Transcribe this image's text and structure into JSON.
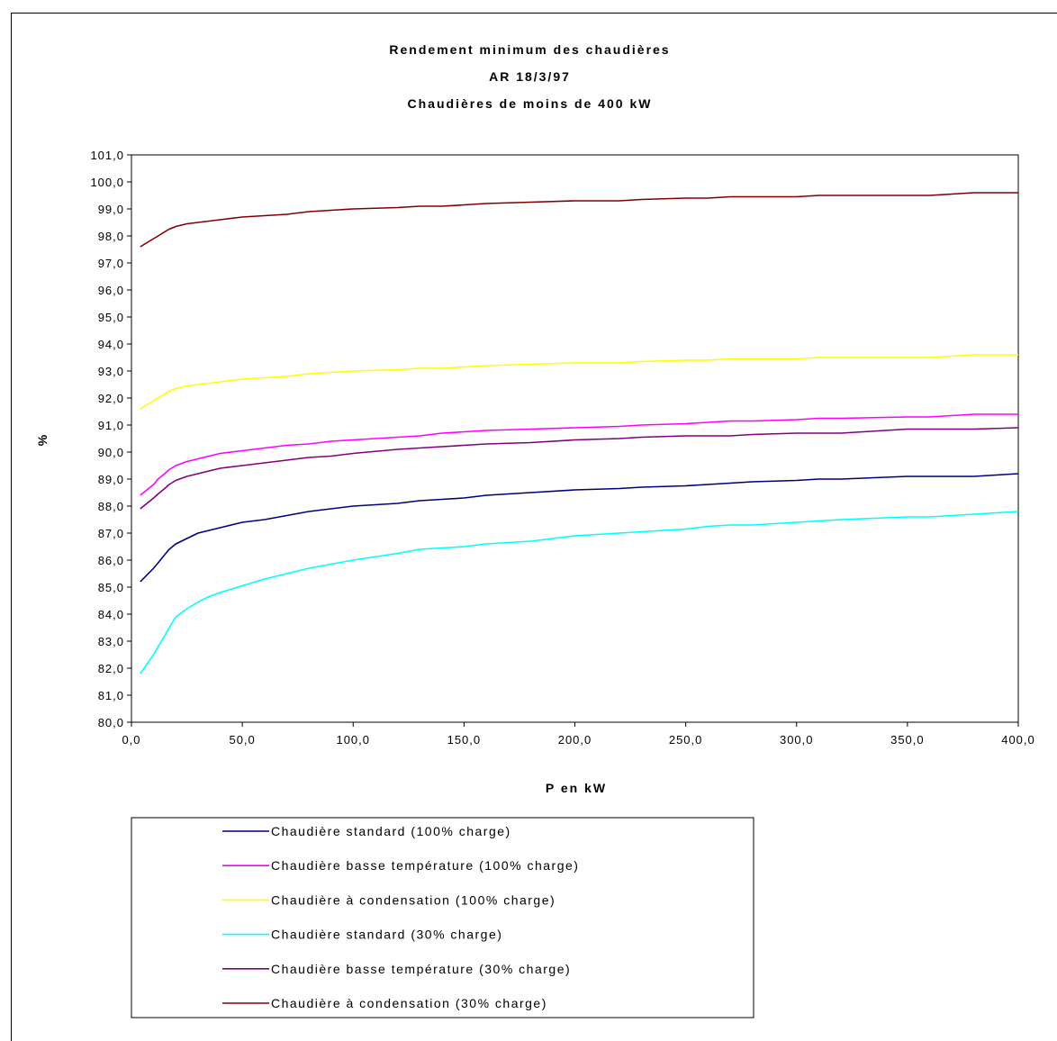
{
  "chart_data": {
    "type": "line",
    "title": [
      "Rendement minimum des chaudières",
      "AR 18/3/97",
      "Chaudières de moins de 400 kW"
    ],
    "xlabel": "P en kW",
    "ylabel": "%",
    "xlim": [
      0,
      400
    ],
    "ylim": [
      80,
      101
    ],
    "x_ticks": [
      "0,0",
      "50,0",
      "100,0",
      "150,0",
      "200,0",
      "250,0",
      "300,0",
      "350,0",
      "400,0"
    ],
    "y_ticks": [
      "80,0",
      "81,0",
      "82,0",
      "83,0",
      "84,0",
      "85,0",
      "86,0",
      "87,0",
      "88,0",
      "89,0",
      "90,0",
      "91,0",
      "92,0",
      "93,0",
      "94,0",
      "95,0",
      "96,0",
      "97,0",
      "98,0",
      "99,0",
      "100,0",
      "101,0"
    ],
    "grid": false,
    "legend_position": "bottom-left",
    "x": [
      4,
      10,
      12,
      15,
      17,
      20,
      25,
      30,
      35,
      40,
      50,
      60,
      70,
      80,
      90,
      100,
      120,
      130,
      140,
      150,
      160,
      180,
      200,
      220,
      230,
      250,
      260,
      270,
      280,
      300,
      310,
      320,
      350,
      360,
      370,
      380,
      400
    ],
    "series": [
      {
        "name": "Chaudière standard (100% charge)",
        "color": "#000080",
        "values": [
          85.2,
          85.7,
          85.9,
          86.2,
          86.4,
          86.6,
          86.8,
          87.0,
          87.1,
          87.2,
          87.4,
          87.5,
          87.65,
          87.8,
          87.9,
          88.0,
          88.1,
          88.2,
          88.25,
          88.3,
          88.4,
          88.5,
          88.6,
          88.65,
          88.7,
          88.75,
          88.8,
          88.85,
          88.9,
          88.95,
          89.0,
          89.0,
          89.1,
          89.1,
          89.1,
          89.1,
          89.2
        ]
      },
      {
        "name": "Chaudière basse température (100% charge)",
        "color": "#ff00ff",
        "values": [
          88.4,
          88.8,
          89.0,
          89.2,
          89.35,
          89.5,
          89.65,
          89.75,
          89.85,
          89.95,
          90.05,
          90.15,
          90.25,
          90.3,
          90.4,
          90.45,
          90.55,
          90.6,
          90.7,
          90.75,
          90.8,
          90.85,
          90.9,
          90.95,
          91.0,
          91.05,
          91.1,
          91.15,
          91.15,
          91.2,
          91.25,
          91.25,
          91.3,
          91.3,
          91.35,
          91.4,
          91.4
        ]
      },
      {
        "name": "Chaudière à condensation (100% charge)",
        "color": "#ffff00",
        "values": [
          91.6,
          91.9,
          92.0,
          92.15,
          92.25,
          92.35,
          92.45,
          92.5,
          92.55,
          92.6,
          92.7,
          92.75,
          92.8,
          92.9,
          92.95,
          93.0,
          93.05,
          93.1,
          93.1,
          93.15,
          93.2,
          93.25,
          93.3,
          93.3,
          93.35,
          93.4,
          93.4,
          93.45,
          93.45,
          93.45,
          93.5,
          93.5,
          93.5,
          93.5,
          93.55,
          93.6,
          93.6
        ]
      },
      {
        "name": "Chaudière standard (30% charge)",
        "color": "#00ffff",
        "values": [
          81.8,
          82.5,
          82.8,
          83.2,
          83.5,
          83.9,
          84.2,
          84.45,
          84.65,
          84.8,
          85.05,
          85.3,
          85.5,
          85.7,
          85.85,
          86.0,
          86.25,
          86.4,
          86.45,
          86.5,
          86.6,
          86.7,
          86.9,
          87.0,
          87.05,
          87.15,
          87.25,
          87.3,
          87.3,
          87.4,
          87.45,
          87.5,
          87.6,
          87.6,
          87.65,
          87.7,
          87.8
        ]
      },
      {
        "name": "Chaudière basse température (30% charge)",
        "color": "#800080",
        "values": [
          87.9,
          88.3,
          88.45,
          88.65,
          88.8,
          88.95,
          89.1,
          89.2,
          89.3,
          89.4,
          89.5,
          89.6,
          89.7,
          89.8,
          89.85,
          89.95,
          90.1,
          90.15,
          90.2,
          90.25,
          90.3,
          90.35,
          90.45,
          90.5,
          90.55,
          90.6,
          90.6,
          90.6,
          90.65,
          90.7,
          90.7,
          90.7,
          90.85,
          90.85,
          90.85,
          90.85,
          90.9
        ]
      },
      {
        "name": "Chaudière à condensation (30% charge)",
        "color": "#800000",
        "values": [
          97.6,
          97.9,
          98.0,
          98.15,
          98.25,
          98.35,
          98.45,
          98.5,
          98.55,
          98.6,
          98.7,
          98.75,
          98.8,
          98.9,
          98.95,
          99.0,
          99.05,
          99.1,
          99.1,
          99.15,
          99.2,
          99.25,
          99.3,
          99.3,
          99.35,
          99.4,
          99.4,
          99.45,
          99.45,
          99.45,
          99.5,
          99.5,
          99.5,
          99.5,
          99.55,
          99.6,
          99.6
        ]
      }
    ]
  }
}
